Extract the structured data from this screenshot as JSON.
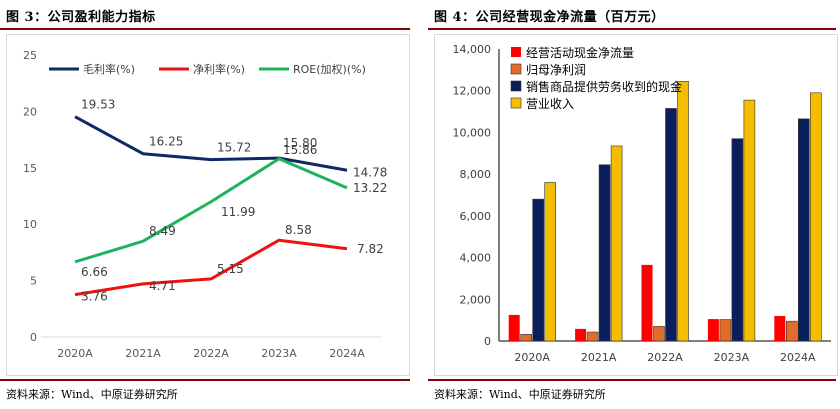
{
  "left": {
    "title": "图 3：公司盈利能力指标",
    "source": "资料来源：Wind、中原证券研究所"
  },
  "right": {
    "title": "图 4：公司经营现金净流量（百万元）",
    "source": "资料来源：Wind、中原证券研究所"
  },
  "chart_data": [
    {
      "type": "line",
      "title": "",
      "categories": [
        "2020A",
        "2021A",
        "2022A",
        "2023A",
        "2024A"
      ],
      "ylim": [
        0,
        25
      ],
      "yticks": [
        0,
        5,
        10,
        15,
        20,
        25
      ],
      "grid": false,
      "legend": "top",
      "series": [
        {
          "name": "毛利率(%)",
          "color": "#0d2a66",
          "values": [
            19.53,
            16.25,
            15.72,
            15.86,
            14.78
          ],
          "labels": [
            "19.53",
            "16.25",
            "15.72",
            "15.86",
            "14.78"
          ]
        },
        {
          "name": "净利率(%)",
          "color": "#ee1111",
          "values": [
            3.76,
            4.71,
            5.15,
            8.58,
            7.82
          ],
          "labels": [
            "3.76",
            "4.71",
            "5.15",
            "8.58",
            "7.82"
          ]
        },
        {
          "name": "ROE(加权)(%)",
          "color": "#1db35a",
          "values": [
            6.66,
            8.49,
            11.99,
            15.8,
            13.22
          ],
          "labels": [
            "6.66",
            "8.49",
            "11.99",
            "15.80",
            "13.22"
          ]
        }
      ]
    },
    {
      "type": "bar",
      "title": "",
      "categories": [
        "2020A",
        "2021A",
        "2022A",
        "2023A",
        "2024A"
      ],
      "ylim": [
        0,
        14000
      ],
      "yticks": [
        0,
        2000,
        4000,
        6000,
        8000,
        10000,
        12000,
        14000
      ],
      "ytick_labels": [
        "0",
        "2,000",
        "4,000",
        "6,000",
        "8,000",
        "10,000",
        "12,000",
        "14,000"
      ],
      "grid": false,
      "legend": "top-left",
      "series": [
        {
          "name": "经营活动现金净流量",
          "color": "#ff0000",
          "values": [
            1250,
            580,
            3650,
            1050,
            1200
          ]
        },
        {
          "name": "归母净利润",
          "color": "#e46c2a",
          "values": [
            320,
            430,
            700,
            1030,
            950
          ]
        },
        {
          "name": "销售商品提供劳务收到的现金",
          "color": "#0b1f5c",
          "values": [
            6800,
            8450,
            11150,
            9700,
            10650
          ]
        },
        {
          "name": "营业收入",
          "color": "#f5bd00",
          "values": [
            7600,
            9350,
            12450,
            11550,
            11900
          ]
        }
      ]
    }
  ]
}
